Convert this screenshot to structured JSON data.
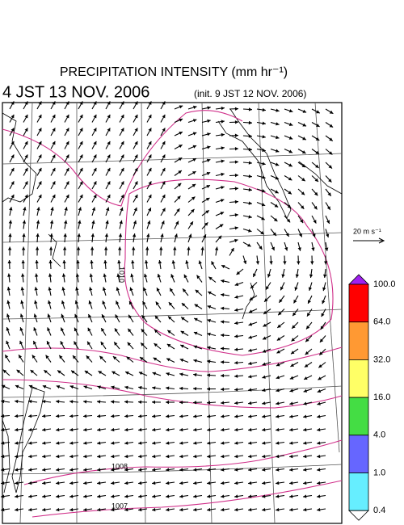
{
  "header": {
    "title": "PRECIPITATION INTENSITY (mm hr⁻¹)",
    "valid_time": "4 JST 13 NOV. 2006",
    "init_time": "(init. 9 JST 12 NOV. 2006)"
  },
  "wind_legend": {
    "label": "20 m s⁻¹"
  },
  "colorbar": {
    "over_color": "#a020f0",
    "under_color": "#ffffff",
    "bin_colors": [
      "#ff0000",
      "#ff9933",
      "#ffff66",
      "#44dd44",
      "#6666ff",
      "#66eeff"
    ],
    "labels": [
      "100.0",
      "64.0",
      "32.0",
      "16.0",
      "4.0",
      "1.0",
      "0.4"
    ]
  },
  "isobar_labels": [
    "1010",
    "1008",
    "1007"
  ]
}
